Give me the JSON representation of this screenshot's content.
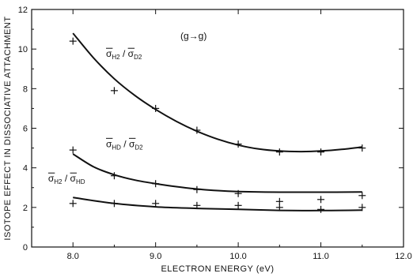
{
  "chart_data": {
    "type": "line",
    "title": "",
    "xlabel": "ELECTRON ENERGY (eV)",
    "ylabel": "ISOTOPE EFFECT IN DISSOCIATIVE ATTACHMENT",
    "xlim": [
      7.5,
      12.0
    ],
    "ylim": [
      0,
      12
    ],
    "xticks": [
      8.0,
      9.0,
      10.0,
      11.0,
      12.0
    ],
    "xtick_labels": [
      "8.0",
      "9.0",
      "10.0",
      "11.0",
      "12.0"
    ],
    "yticks": [
      0,
      2,
      4,
      6,
      8,
      10,
      12
    ],
    "ytick_labels": [
      "0",
      "2",
      "4",
      "6",
      "8",
      "10",
      "12"
    ],
    "grid": false,
    "annotation": "(g→g)",
    "series": [
      {
        "name": "σH2 / σD2",
        "marker": "+",
        "points": [
          [
            8.0,
            10.4
          ],
          [
            8.5,
            7.9
          ],
          [
            9.0,
            7.0
          ],
          [
            9.5,
            5.9
          ],
          [
            10.0,
            5.2
          ],
          [
            10.5,
            4.8
          ],
          [
            11.0,
            4.8
          ],
          [
            11.5,
            5.0
          ]
        ],
        "curve": [
          [
            8.0,
            10.8
          ],
          [
            8.25,
            9.55
          ],
          [
            8.5,
            8.5
          ],
          [
            8.75,
            7.65
          ],
          [
            9.0,
            6.95
          ],
          [
            9.25,
            6.35
          ],
          [
            9.5,
            5.85
          ],
          [
            9.75,
            5.45
          ],
          [
            10.0,
            5.15
          ],
          [
            10.25,
            4.95
          ],
          [
            10.5,
            4.85
          ],
          [
            10.75,
            4.82
          ],
          [
            11.0,
            4.85
          ],
          [
            11.25,
            4.93
          ],
          [
            11.5,
            5.05
          ]
        ]
      },
      {
        "name": "σHD / σD2",
        "marker": "+",
        "points": [
          [
            8.0,
            4.9
          ],
          [
            8.5,
            3.6
          ],
          [
            9.0,
            3.2
          ],
          [
            9.5,
            2.9
          ],
          [
            10.0,
            2.7
          ],
          [
            10.5,
            2.3
          ],
          [
            11.0,
            2.4
          ],
          [
            11.5,
            2.6
          ]
        ],
        "curve": [
          [
            8.0,
            4.7
          ],
          [
            8.25,
            4.05
          ],
          [
            8.5,
            3.65
          ],
          [
            8.75,
            3.38
          ],
          [
            9.0,
            3.2
          ],
          [
            9.25,
            3.05
          ],
          [
            9.5,
            2.93
          ],
          [
            9.75,
            2.85
          ],
          [
            10.0,
            2.8
          ],
          [
            10.5,
            2.77
          ],
          [
            11.0,
            2.77
          ],
          [
            11.5,
            2.78
          ]
        ]
      },
      {
        "name": "σH2 / σHD",
        "marker": "+",
        "points": [
          [
            8.0,
            2.2
          ],
          [
            8.5,
            2.2
          ],
          [
            9.0,
            2.2
          ],
          [
            9.5,
            2.1
          ],
          [
            10.0,
            2.1
          ],
          [
            10.5,
            2.0
          ],
          [
            11.0,
            1.9
          ],
          [
            11.5,
            2.0
          ]
        ],
        "curve": [
          [
            8.0,
            2.5
          ],
          [
            8.5,
            2.2
          ],
          [
            9.0,
            2.03
          ],
          [
            9.5,
            1.95
          ],
          [
            10.0,
            1.9
          ],
          [
            10.5,
            1.85
          ],
          [
            11.0,
            1.84
          ],
          [
            11.5,
            1.86
          ]
        ]
      }
    ],
    "labels": [
      {
        "base": "σ",
        "sub": "H2",
        "sep": " /",
        "base2": "σ",
        "sub2": "D2"
      },
      {
        "base": "σ",
        "sub": "HD",
        "sep": " /",
        "base2": "σ",
        "sub2": "D2"
      },
      {
        "base": "σ",
        "sub": "H2",
        "sep": " /",
        "base2": "σ",
        "sub2": "HD"
      }
    ]
  }
}
